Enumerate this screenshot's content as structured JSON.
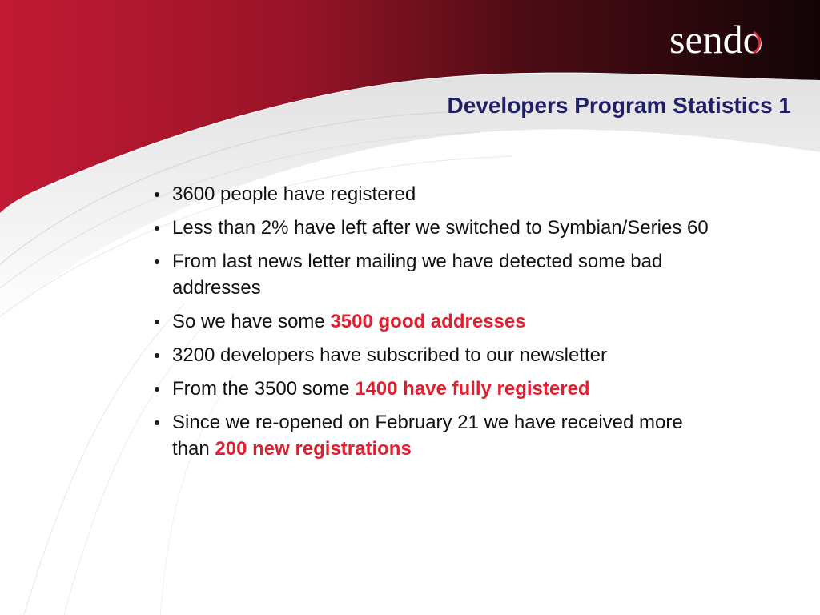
{
  "slide": {
    "title": "Developers Program Statistics 1",
    "logo_text": "sendo",
    "bullets": [
      {
        "text": "3600 people have registered",
        "highlight": "",
        "suffix": ""
      },
      {
        "text": "Less than 2% have left after we switched to Symbian/Series 60",
        "highlight": "",
        "suffix": ""
      },
      {
        "text": "From last news letter mailing we have detected some bad addresses",
        "highlight": "",
        "suffix": ""
      },
      {
        "text": "So we have some ",
        "highlight": "3500 good addresses",
        "suffix": ""
      },
      {
        "text": "3200 developers have subscribed to our newsletter",
        "highlight": "",
        "suffix": ""
      },
      {
        "text": "From the 3500 some ",
        "highlight": "1400 have fully registered",
        "suffix": ""
      },
      {
        "text": "Since we re-opened on February 21 we have received more than ",
        "highlight": "200 new registrations",
        "suffix": ""
      }
    ]
  },
  "colors": {
    "banner_red": "#b01830",
    "banner_dark": "#2a0a0e",
    "title": "#1f1f66",
    "highlight": "#e0202e",
    "logo": "#ffffff",
    "logo_accent": "#e02030"
  }
}
